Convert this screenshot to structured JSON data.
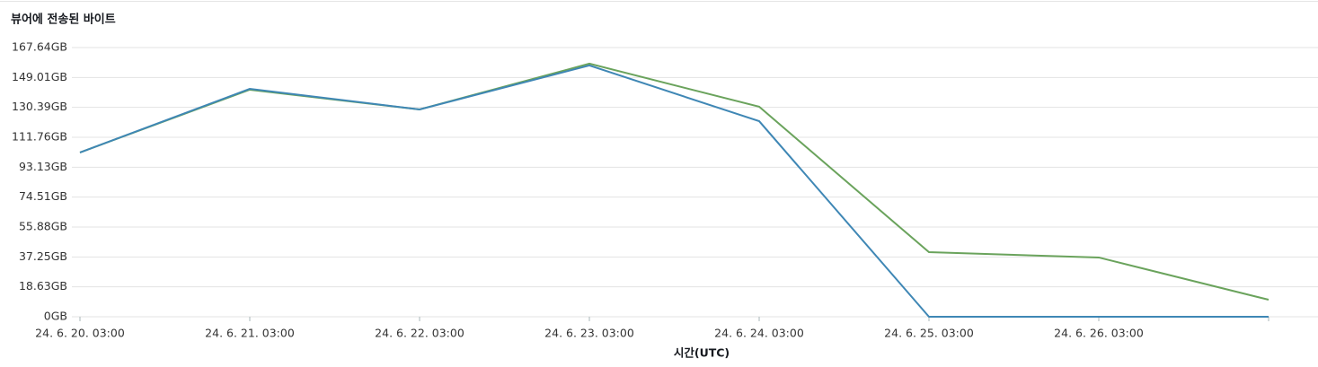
{
  "chart_data": {
    "type": "line",
    "title": "뷰어에 전송된 바이트",
    "x_label": "시간(UTC)",
    "categories": [
      "24. 6. 20. 03:00",
      "24. 6. 21. 03:00",
      "24. 6. 22. 03:00",
      "24. 6. 23. 03:00",
      "24. 6. 24. 03:00",
      "24. 6. 25. 03:00",
      "24. 6. 26. 03:00",
      null
    ],
    "series": [
      {
        "color": "#6aa35c",
        "values": [
          102.3,
          141.4,
          129.1,
          157.6,
          130.8,
          40.2,
          36.9,
          10.6
        ]
      },
      {
        "color": "#3f87b5",
        "values": [
          102.3,
          141.9,
          129.1,
          156.5,
          121.8,
          0,
          0,
          0
        ]
      }
    ],
    "ylim": [
      0,
      167.64
    ],
    "yticks": [
      {
        "value": 0,
        "label": "0GB"
      },
      {
        "value": 18.63,
        "label": "18.63GB"
      },
      {
        "value": 37.25,
        "label": "37.25GB"
      },
      {
        "value": 55.88,
        "label": "55.88GB"
      },
      {
        "value": 74.51,
        "label": "74.51GB"
      },
      {
        "value": 93.13,
        "label": "93.13GB"
      },
      {
        "value": 111.76,
        "label": "111.76GB"
      },
      {
        "value": 130.39,
        "label": "130.39GB"
      },
      {
        "value": 149.01,
        "label": "149.01GB"
      },
      {
        "value": 167.64,
        "label": "167.64GB"
      }
    ],
    "grid": true
  }
}
